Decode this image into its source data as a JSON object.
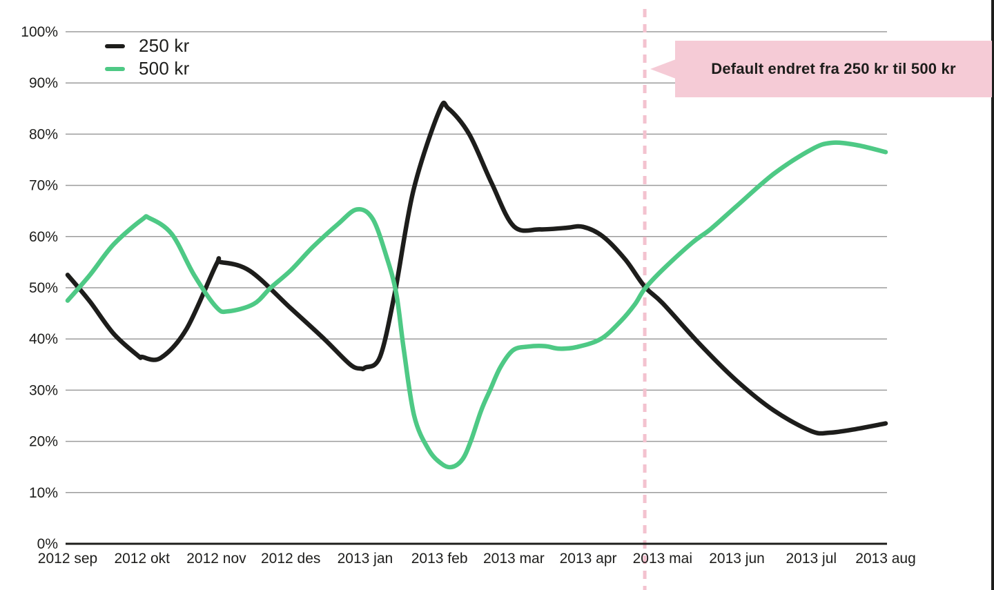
{
  "colors": {
    "series_250": "#1d1d1b",
    "series_500": "#4ec985",
    "grid": "#9b9b9b",
    "axis": "#1d1d1b",
    "text": "#1d1d1b",
    "event_dash": "#f3c2cf",
    "callout_bg": "#f5cbd6",
    "background": "#ffffff"
  },
  "legend": {
    "items": [
      {
        "label": "250 kr",
        "color": "#1d1d1b"
      },
      {
        "label": "500 kr",
        "color": "#4ec985"
      }
    ]
  },
  "annotation": {
    "text": "Default endret fra 250 kr til 500 kr"
  },
  "chart_data": {
    "type": "line",
    "title": "",
    "xlabel": "",
    "ylabel": "",
    "grid": true,
    "legend_position": "top-left",
    "ylim": [
      0,
      100
    ],
    "y_ticks": [
      "0%",
      "10%",
      "20%",
      "30%",
      "40%",
      "50%",
      "60%",
      "70%",
      "80%",
      "90%",
      "100%"
    ],
    "y_tick_values": [
      0,
      10,
      20,
      30,
      40,
      50,
      60,
      70,
      80,
      90,
      100
    ],
    "categories": [
      "2012 sep",
      "2012 okt",
      "2012 nov",
      "2012 des",
      "2013 jan",
      "2013 feb",
      "2013 mar",
      "2013 apr",
      "2013 mai",
      "2013 jun",
      "2013 jul",
      "2013 aug"
    ],
    "event_line": {
      "x_month": 7.761,
      "label": "Default endret fra 250 kr til 500 kr",
      "style": "dashed"
    },
    "series": [
      {
        "name": "250 kr",
        "color": "#1d1d1b",
        "monthly_values": [
          52.5,
          36.5,
          54.8,
          46,
          34.4,
          84.6,
          62,
          61.9,
          47,
          31.8,
          22,
          23.5
        ],
        "points": [
          [
            0,
            52.5
          ],
          [
            0.3,
            47.3
          ],
          [
            0.62,
            41
          ],
          [
            0.95,
            36.7
          ],
          [
            1.0,
            36.5
          ],
          [
            1.25,
            36.3
          ],
          [
            1.6,
            42
          ],
          [
            2.0,
            54.6
          ],
          [
            2.06,
            55
          ],
          [
            2.45,
            53.3
          ],
          [
            3.0,
            46
          ],
          [
            3.45,
            40
          ],
          [
            3.8,
            35
          ],
          [
            3.95,
            34.2
          ],
          [
            4.0,
            34.4
          ],
          [
            4.2,
            36.5
          ],
          [
            4.4,
            49
          ],
          [
            4.65,
            69
          ],
          [
            5.0,
            84.6
          ],
          [
            5.12,
            85
          ],
          [
            5.4,
            80
          ],
          [
            5.7,
            70.5
          ],
          [
            6.0,
            62
          ],
          [
            6.35,
            61.4
          ],
          [
            6.7,
            61.7
          ],
          [
            6.93,
            61.9
          ],
          [
            7.2,
            60
          ],
          [
            7.5,
            55.5
          ],
          [
            7.761,
            50.2
          ],
          [
            8.0,
            47
          ],
          [
            8.5,
            39
          ],
          [
            9.0,
            31.8
          ],
          [
            9.5,
            26
          ],
          [
            10.0,
            22
          ],
          [
            10.25,
            21.7
          ],
          [
            10.6,
            22.4
          ],
          [
            11,
            23.5
          ]
        ]
      },
      {
        "name": "500 kr",
        "color": "#4ec985",
        "monthly_values": [
          47.5,
          63.3,
          46.2,
          53.4,
          65,
          15.8,
          38,
          38.4,
          53.5,
          66,
          77,
          76.5
        ],
        "points": [
          [
            0,
            47.5
          ],
          [
            0.3,
            52.5
          ],
          [
            0.62,
            58.5
          ],
          [
            1.0,
            63.3
          ],
          [
            1.1,
            63.6
          ],
          [
            1.4,
            60.5
          ],
          [
            1.7,
            52.5
          ],
          [
            2.0,
            46.2
          ],
          [
            2.16,
            45.4
          ],
          [
            2.5,
            46.8
          ],
          [
            2.73,
            50
          ],
          [
            3.0,
            53.4
          ],
          [
            3.3,
            58
          ],
          [
            3.64,
            62.5
          ],
          [
            3.89,
            65.3
          ],
          [
            4.1,
            63.5
          ],
          [
            4.29,
            56
          ],
          [
            4.42,
            48.8
          ],
          [
            4.52,
            38
          ],
          [
            4.66,
            25
          ],
          [
            4.85,
            18.5
          ],
          [
            5.03,
            15.6
          ],
          [
            5.17,
            15
          ],
          [
            5.31,
            16.5
          ],
          [
            5.42,
            20
          ],
          [
            5.56,
            26
          ],
          [
            5.68,
            30
          ],
          [
            5.82,
            34.5
          ],
          [
            5.99,
            37.8
          ],
          [
            6.19,
            38.5
          ],
          [
            6.42,
            38.6
          ],
          [
            6.61,
            38.1
          ],
          [
            6.84,
            38.4
          ],
          [
            7.17,
            40
          ],
          [
            7.44,
            43.5
          ],
          [
            7.63,
            46.8
          ],
          [
            7.761,
            49.8
          ],
          [
            8.0,
            53.5
          ],
          [
            8.4,
            58.8
          ],
          [
            8.65,
            61.5
          ],
          [
            9.0,
            66
          ],
          [
            9.5,
            72.3
          ],
          [
            10.0,
            77
          ],
          [
            10.27,
            78.3
          ],
          [
            10.6,
            77.9
          ],
          [
            11,
            76.5
          ]
        ]
      }
    ]
  }
}
